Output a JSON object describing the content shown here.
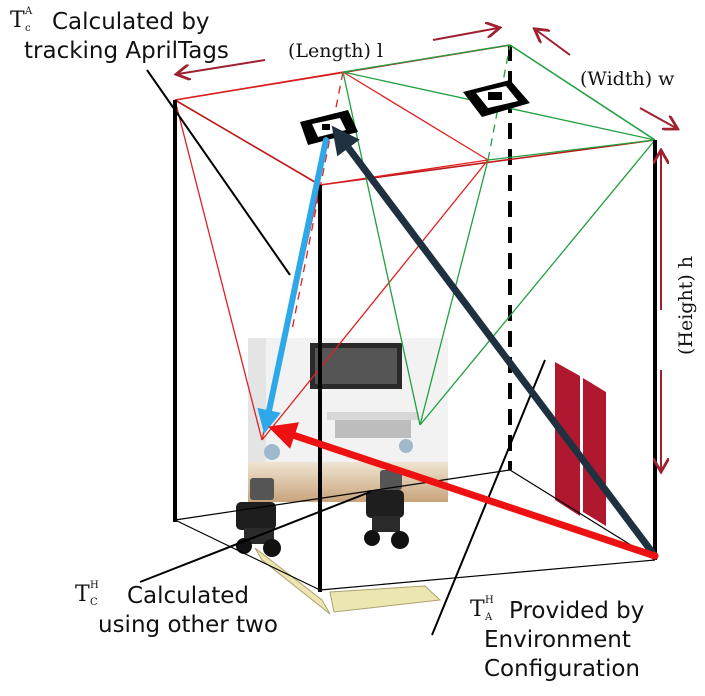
{
  "annotations": {
    "tca": {
      "base": "T",
      "sup": "A",
      "sub": "c",
      "line1": "Calculated by",
      "line2": "tracking AprilTags"
    },
    "tch": {
      "base": "T",
      "sup": "H",
      "sub": "C",
      "line1": "Calculated",
      "line2": "using other two"
    },
    "tha": {
      "base": "T",
      "sup": "H",
      "sub": "A",
      "line1": "Provided by",
      "line2": "Environment",
      "line3": "Configuration"
    }
  },
  "dimensions": {
    "length": "(Length) l",
    "width": "(Width) w",
    "height": "(Height) h"
  },
  "colors": {
    "frame": "#000000",
    "left_camera_cone": "#e02020",
    "right_camera_cone": "#20a040",
    "dimension_arrows": "#a02030",
    "tca_arrow": "#2ea8e8",
    "tch_arrow": "#ee1111",
    "tha_arrow": "#1f3040",
    "door": "#b01830"
  }
}
